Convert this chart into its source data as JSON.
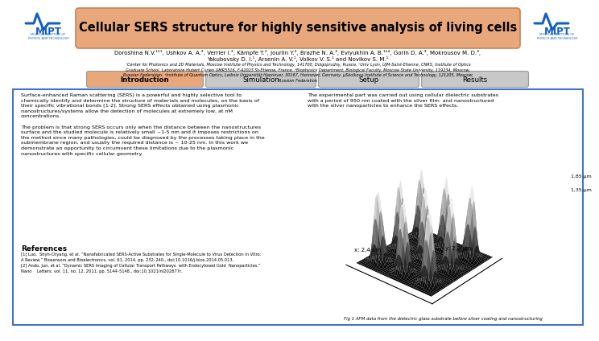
{
  "title": "Cellular SERS structure for highly sensitive analysis of living cells",
  "header_bg": "#E8A87C",
  "header_border": "#C8845A",
  "title_color": "#000000",
  "bg_color": "#FFFFFF",
  "authors_line1": "Doroshina N.V.¹ʰ¹, Ushkov A. A.², Verrier I.², Kämpfe T.², Jourlin Y.², Brazhe N. A.³, Evlyukhin A. B.¹ʰ⁴, Gorin D. A.³, Mokrousov M. D.³,",
  "authors_line2": "Yakubovsky D. I.¹, Arsenin A. V.¹, Volkov V. S.¹ and Novikov S. M.¹",
  "affiliations": "¹Center for Photonics and 2D Materials, Moscow Institute of Physics and Technology, 141700, Dolgoprudny, Russia. ²Univ Lyon, UJM-Saint-Etienne, CNRS, Institute of Optics\nGraduate School, Laboratoire Hubert Curien UMR5516, F-42023 St-Etienne, France. ³Biophysics Department, Biological Faculty, Moscow State University, 119234, Moscow,\nRussian Federation. ⁴Institute of Quantum Optics, Leibniz Universität Hannover, 30167, Hannover, Germany. µSkolkovo Institute of Science and Technology, 121205, Moscow,\nRussian Federation",
  "tab_labels": [
    "Introduction",
    "Simulation",
    "Setup",
    "Results"
  ],
  "tab_active_color": "#E8A87C",
  "tab_inactive_color": "#C8C8C8",
  "body_text_left": "Surface-enhanced Raman scattering (SERS) is a powerful and highly selective tool to\nchemically identify and determine the structure of materials and molecules, on the basis of\ntheir specific vibrational bonds [1-2]. Strong SERS effects obtained using plasmonic\nnanostructures/systems allow the detection of molecules at extremely low, at nM\nconcentrations.\n\nThe problem is that strong SERS occurs only when the distance between the nanostructures\nsurface and the studied molecule is relatively small ~1-5 nm and it imposes restrictions on\nthe method since many pathologies, could be diagnosed by the processes taking place in the\nsubmembrane region, and usually the required distance is ~ 10-25 nm. In this work we\ndemonstrate an opportunity to circumvent these limitations due to the plasmonic\nnanostructures with specific cellular geometry.",
  "body_text_right": "The experimental part was carried out using cellular dielectric substrates\nwith a period of 950 nm coated with the silver film  and nanostructured\nwith the silver nanoparticles to enhance the SERS effects.",
  "references_title": "References",
  "ref1": "[1] Luo,  Shyh-Chyang, et al. “Nanofabricated SERS-Active Substrates for Single-Molecule to Virus Detection in Vitro:\nA Review.” Biosensors and Bioelectronics, vol. 61, 2014, pp. 232–240., doi:10.1016/j.bios.2014.05.013.",
  "ref2": "[2] Ando, Jun, et al. “Dynamic SERS Imaging of Cellular Transport Pathways  with Endocytosed Gold  Nanoparticles.”\nNano    Letters, vol. 11, no. 12, 2011, pp. 5144–5148., doi:10.1021/nl202877r.",
  "fig_caption": "Fig 1 AFM data from the dielectric glass substrate before silver coating and nanostructuring",
  "content_border_color": "#4472C4",
  "z_label_hi": "1,85 μm",
  "z_label_lo": "1,35 μm",
  "x_axis_label": "x: 2,4 μm",
  "y_axis_label": "y: 2,2 μm"
}
